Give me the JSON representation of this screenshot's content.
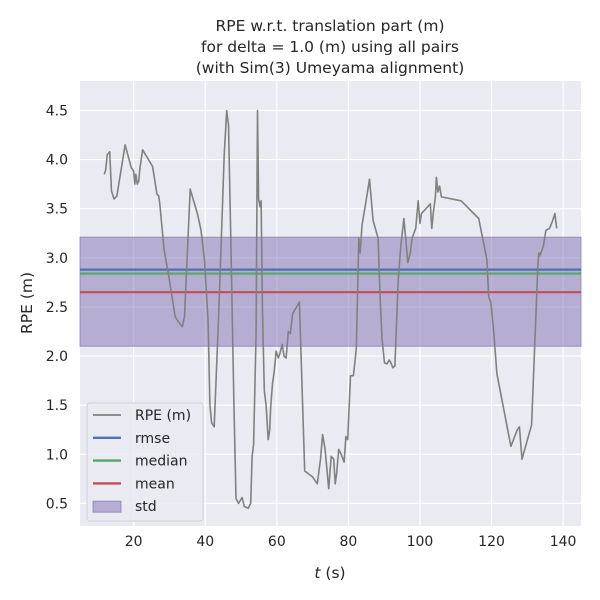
{
  "chart_data": {
    "type": "line",
    "title": [
      "RPE w.r.t. translation part (m)",
      "for delta = 1.0 (m) using all pairs",
      "(with Sim(3) Umeyama alignment)"
    ],
    "xlabel": "t (s)",
    "xlabel_italic_part": "t",
    "xlabel_rest": " (s)",
    "ylabel": "RPE (m)",
    "xlim": [
      5,
      145
    ],
    "ylim": [
      0.27,
      4.8
    ],
    "xticks": [
      20,
      40,
      60,
      80,
      100,
      120,
      140
    ],
    "yticks": [
      0.5,
      1.0,
      1.5,
      2.0,
      2.5,
      3.0,
      3.5,
      4.0,
      4.5
    ],
    "ytick_labels": [
      "0.5",
      "1.0",
      "1.5",
      "2.0",
      "2.5",
      "3.0",
      "3.5",
      "4.0",
      "4.5"
    ],
    "grid": true,
    "legend_position": "lower-left",
    "series": [
      {
        "name": "RPE (m)",
        "color": "#808080",
        "x": [
          11.8,
          12.2,
          12.6,
          13.3,
          13.8,
          14.5,
          15.3,
          17.6,
          19.3,
          20.0,
          20.3,
          20.6,
          21.0,
          21.4,
          21.7,
          22.5,
          25.3,
          26.0,
          26.5,
          27.0,
          27.3,
          28.5,
          29.8,
          30.5,
          31.6,
          32.5,
          33.6,
          34.2,
          35.8,
          37.8,
          38.8,
          39.8,
          40.8,
          41.3,
          41.8,
          42.5,
          43.8,
          44.6,
          45.3,
          46.0,
          46.5,
          47.1,
          48.0,
          48.6,
          49.3,
          50.3,
          50.9,
          52.0,
          52.7,
          53.1,
          53.5,
          54.2,
          54.6,
          54.9,
          55.3,
          55.6,
          56.0,
          56.5,
          57.0,
          57.6,
          58.0,
          58.3,
          58.8,
          59.3,
          59.8,
          60.4,
          60.9,
          61.5,
          62.0,
          62.6,
          63.2,
          63.8,
          64.4,
          66.3,
          67.8,
          70.0,
          71.3,
          72.2,
          72.8,
          73.5,
          74.5,
          75.2,
          75.9,
          76.3,
          76.7,
          77.3,
          78.0,
          78.8,
          79.3,
          79.8,
          80.6,
          81.4,
          81.8,
          82.2,
          82.9,
          83.3,
          83.8,
          84.8,
          85.9,
          86.9,
          87.7,
          88.3,
          88.8,
          89.4,
          90.1,
          90.8,
          91.4,
          91.9,
          92.4,
          93.0,
          93.9,
          94.6,
          95.5,
          96.6,
          97.3,
          97.8,
          98.8,
          99.5,
          100.0,
          100.4,
          101.7,
          102.9,
          103.3,
          103.7,
          104.3,
          104.6,
          105.0,
          105.5,
          106.0,
          111.5,
          116.4,
          118.7,
          119.2,
          119.8,
          120.6,
          121.5,
          125.4,
          127.2,
          127.8,
          128.5,
          131.2,
          132.9,
          133.2,
          133.5,
          134.5,
          135.2,
          136.2,
          137.1,
          137.7,
          138.2
        ],
        "y": [
          3.85,
          3.9,
          4.05,
          4.08,
          3.68,
          3.6,
          3.63,
          4.15,
          3.92,
          3.88,
          3.75,
          3.85,
          3.75,
          3.78,
          3.9,
          4.1,
          3.93,
          3.77,
          3.65,
          3.63,
          3.55,
          3.08,
          2.82,
          2.65,
          2.4,
          2.35,
          2.3,
          2.4,
          3.7,
          3.45,
          3.28,
          2.98,
          2.35,
          1.5,
          1.32,
          1.28,
          2.45,
          3.3,
          4.05,
          4.5,
          4.35,
          3.25,
          1.52,
          0.55,
          0.5,
          0.56,
          0.47,
          0.45,
          0.5,
          0.98,
          1.1,
          2.23,
          4.5,
          3.6,
          3.52,
          3.58,
          2.45,
          1.65,
          1.5,
          1.15,
          1.25,
          1.48,
          1.72,
          1.85,
          2.05,
          1.98,
          2.03,
          2.12,
          2.0,
          1.98,
          2.25,
          2.23,
          2.43,
          2.55,
          0.83,
          0.77,
          0.7,
          0.95,
          1.2,
          1.05,
          0.65,
          0.98,
          0.95,
          0.7,
          0.8,
          1.05,
          1.0,
          0.92,
          1.18,
          1.15,
          1.8,
          1.8,
          1.93,
          2.08,
          3.2,
          3.05,
          3.33,
          3.55,
          3.8,
          3.38,
          3.28,
          3.2,
          2.65,
          2.18,
          1.93,
          1.92,
          1.96,
          1.93,
          1.88,
          1.9,
          2.75,
          3.1,
          3.4,
          2.95,
          3.05,
          3.2,
          3.3,
          3.58,
          3.35,
          3.45,
          3.5,
          3.55,
          3.3,
          3.45,
          3.62,
          3.82,
          3.67,
          3.73,
          3.62,
          3.58,
          3.4,
          2.98,
          2.6,
          2.55,
          2.25,
          1.82,
          1.08,
          1.25,
          1.28,
          0.95,
          1.3,
          2.88,
          3.05,
          3.02,
          3.12,
          3.28,
          3.3,
          3.38,
          3.45,
          3.3
        ]
      },
      {
        "name": "rmse",
        "color": "#4c72b0",
        "value": 2.88
      },
      {
        "name": "median",
        "color": "#55a868",
        "value": 2.84
      },
      {
        "name": "mean",
        "color": "#c44e52",
        "value": 2.65
      },
      {
        "name": "std",
        "color": "#8172b2",
        "band": [
          2.1,
          3.21
        ]
      }
    ],
    "colors": {
      "axes_bg": "#eaeaf2",
      "grid": "#ffffff",
      "text": "#262626"
    }
  }
}
